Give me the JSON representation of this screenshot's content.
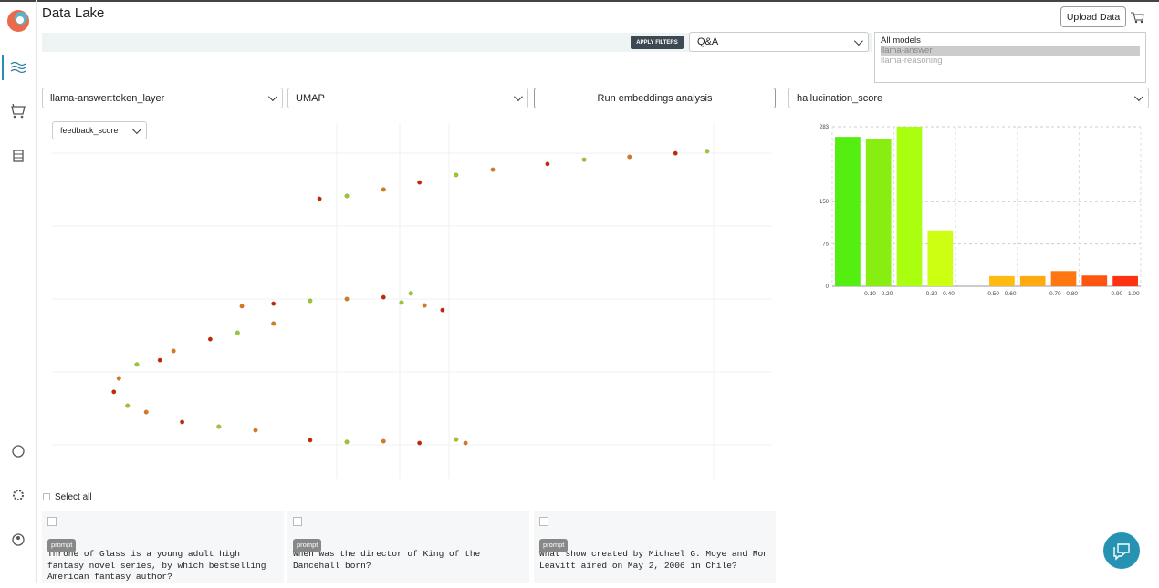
{
  "header": {
    "title": "Data Lake",
    "upload": "Upload Data"
  },
  "filters": {
    "apply": "APPLY FILTERS",
    "dataset": "Q&A",
    "models": [
      "All models",
      "llama-answer",
      "llama-reasoning"
    ]
  },
  "controls": {
    "layer": "llama-answer:token_layer",
    "method": "UMAP",
    "run": "Run embeddings analysis",
    "metric": "hallucination_score",
    "color_by": "feedback_score"
  },
  "select_all": "Select all",
  "cards": [
    {
      "tag": "prompt",
      "text": "Throne of Glass is a young adult high fantasy novel series, by which bestselling American fantasy author?"
    },
    {
      "tag": "prompt",
      "text": "When was the director of King of the Dancehall born?"
    },
    {
      "tag": "prompt",
      "text": "What show created by Michael G. Moye and Ron Leavitt aired on May 2, 2006 in Chile?"
    }
  ],
  "chart_data": [
    {
      "type": "scatter",
      "xlim": [
        0,
        100
      ],
      "ylim": [
        0,
        100
      ],
      "x": [
        37.2,
        41,
        46.1,
        51.1,
        56.2,
        61.3,
        68.9,
        74,
        80.3,
        86.7,
        91.1,
        26.4,
        30.8,
        35.9,
        41,
        46.1,
        49.9,
        51.8,
        54.3,
        48.6,
        30.8,
        22,
        25.8,
        16.9,
        15,
        11.8,
        9.3,
        8.6,
        10.5,
        13.1,
        18.1,
        23.2,
        28.3,
        35.9,
        41,
        46.1,
        51.1,
        56.2,
        57.5
      ],
      "y": [
        78.7,
        79.5,
        81.3,
        83.3,
        85.4,
        86.9,
        88.5,
        89.7,
        90.5,
        91.5,
        92.1,
        48.5,
        49.2,
        50,
        50.5,
        51,
        52.1,
        48.7,
        47.4,
        49.5,
        43.6,
        39.2,
        41,
        35.9,
        33.3,
        32.1,
        28.2,
        24.4,
        20.5,
        18.7,
        15.9,
        14.6,
        13.6,
        10.8,
        10.3,
        10.5,
        10,
        11,
        10
      ],
      "colors": [
        "#cc2200",
        "#99cc22",
        "#dd7711",
        "#cc2200",
        "#99cc22",
        "#dd7711",
        "#cc2200",
        "#99cc22",
        "#dd7711",
        "#cc2200",
        "#99cc22",
        "#dd7711",
        "#cc2200",
        "#99cc22",
        "#dd7711",
        "#cc2200",
        "#99cc22",
        "#dd7711",
        "#cc2200",
        "#99cc22",
        "#dd7711",
        "#cc2200",
        "#99cc22",
        "#dd7711",
        "#cc2200",
        "#99cc22",
        "#dd7711",
        "#cc2200",
        "#99cc22",
        "#dd7711",
        "#cc2200",
        "#99cc22",
        "#dd7711",
        "#cc2200",
        "#99cc22",
        "#dd7711",
        "#cc2200",
        "#99cc22",
        "#dd7711"
      ]
    },
    {
      "type": "bar",
      "categories": [
        null,
        "0.10 - 0.20",
        null,
        "0.30 - 0.40",
        null,
        "0.50 - 0.60",
        null,
        "0.70 - 0.80",
        null,
        "0.90 - 1.00"
      ],
      "values": [
        265,
        262,
        283,
        99,
        0,
        18,
        18,
        27,
        19,
        18
      ],
      "colors": [
        "#55ee11",
        "#88ee11",
        "#aaff11",
        "#ccff11",
        "#eecc11",
        "#ffbb11",
        "#ffaa11",
        "#ff7711",
        "#ff5511",
        "#ff3311"
      ],
      "ylim": [
        0,
        283
      ],
      "yticks": [
        0,
        75,
        150,
        283
      ],
      "grid": true
    }
  ]
}
